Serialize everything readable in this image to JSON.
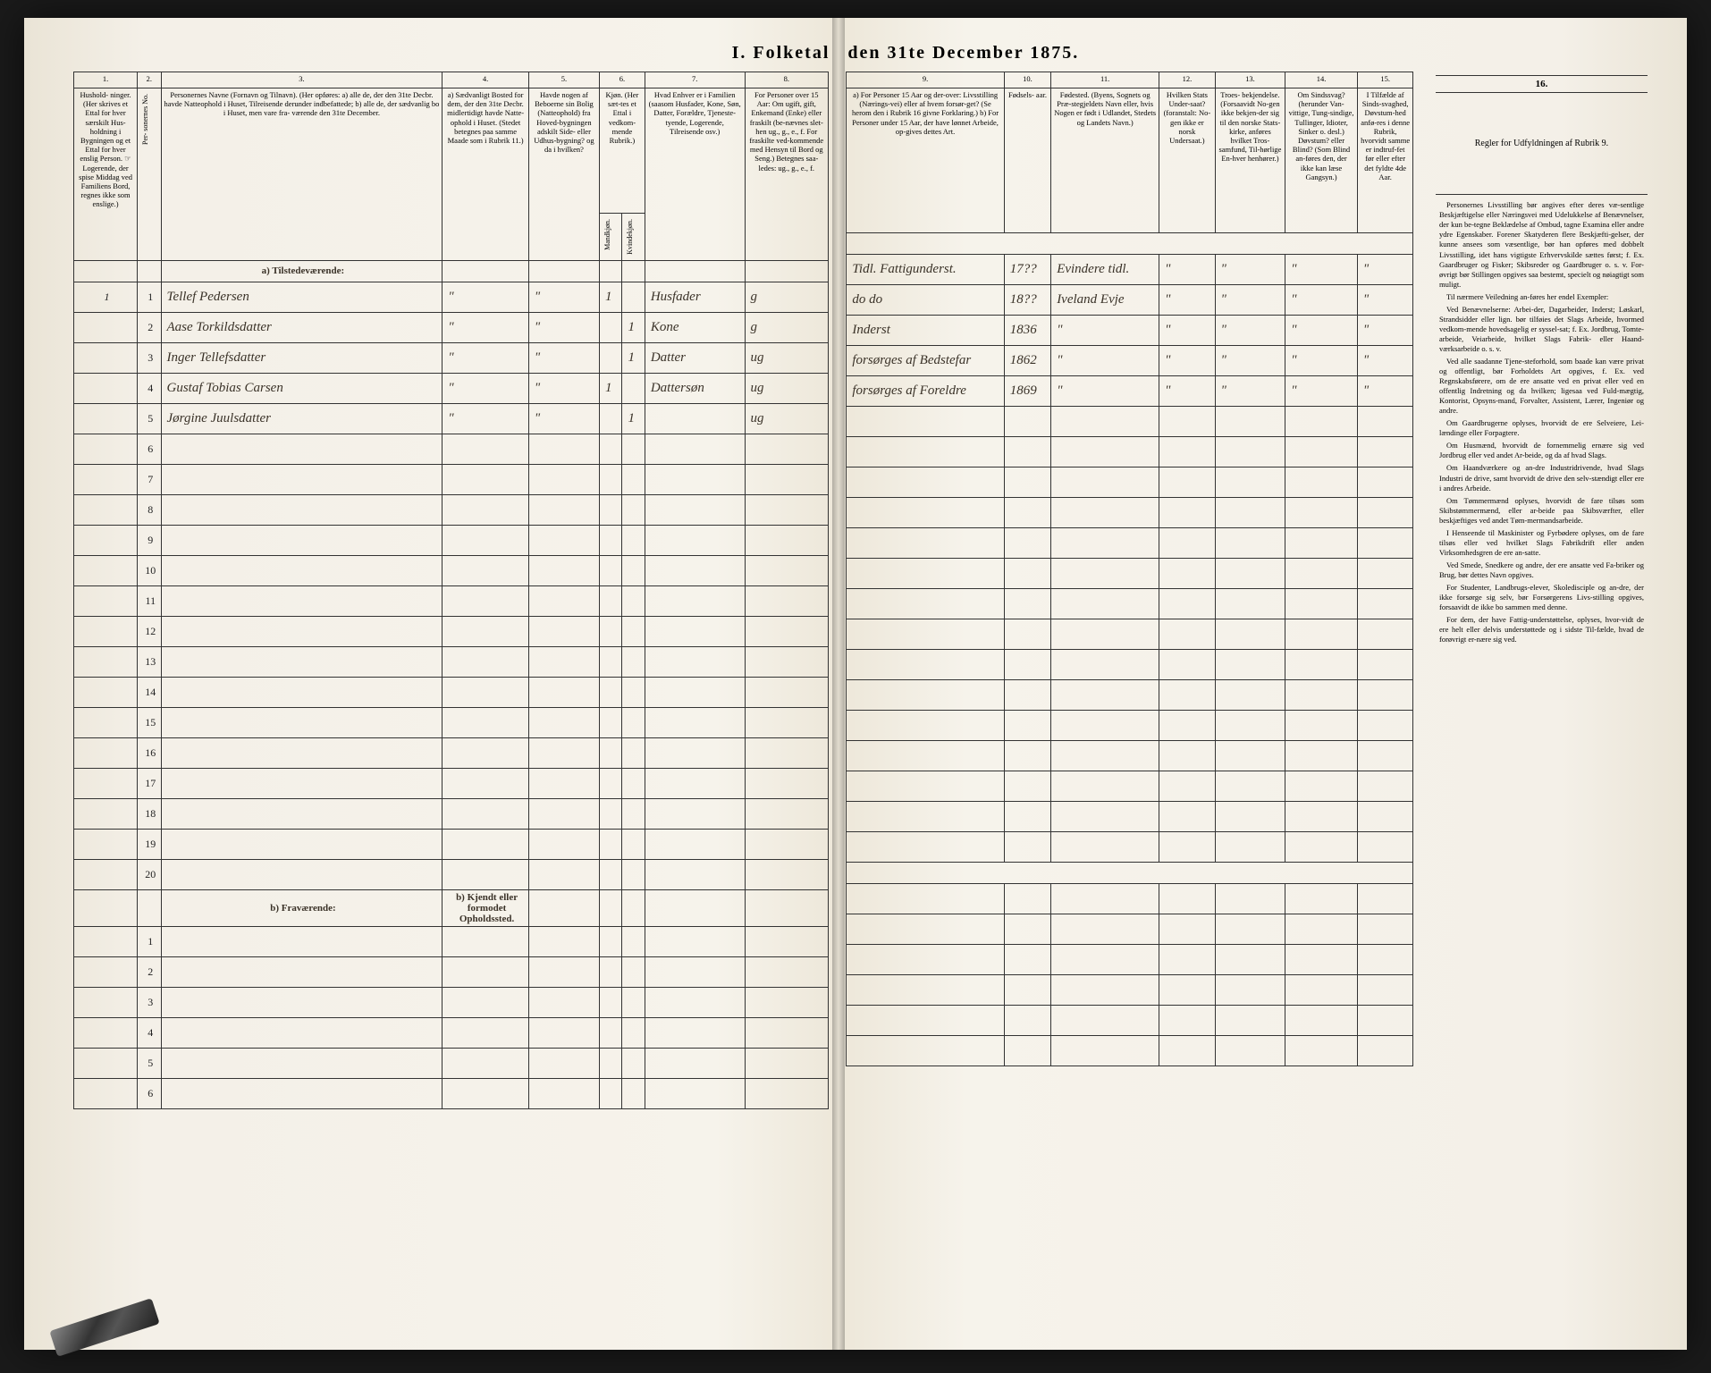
{
  "title_left": "I.  Folketal",
  "title_right": "den 31te December 1875.",
  "columns_left": {
    "1": {
      "num": "1.",
      "head": "Hushold-\nninger.\n(Her skrives et Ettal for hver særskilt Hus-holdning i Bygningen og et Ettal for hver enslig Person.\n☞ Logerende, der spise Middag ved Familiens Bord, regnes ikke som enslige.)"
    },
    "2": {
      "num": "2.",
      "head": "Per-\nsonernes No."
    },
    "3": {
      "num": "3.",
      "head": "Personernes Navne (Fornavn og Tilnavn).\n\n(Her opføres:\na) alle de, der den 31te Decbr. havde Natteophold i Huset, Tilreisende derunder indbefattede;\nb) alle de, der sædvanlig bo i Huset, men vare fra-\nværende den 31te December."
    },
    "4": {
      "num": "4.",
      "head": "a) Sædvanligt Bosted for dem, der den 31te Decbr. midlertidigt havde Natte-ophold i Huset.\n(Stedet betegnes paa samme Maade som i Rubrik 11.)"
    },
    "5": {
      "num": "5.",
      "head": "Havde nogen af Beboerne sin Bolig (Natteophold) fra Hoved-bygningen adskilt Side- eller Udhus-bygning? og da i hvilken?"
    },
    "6": {
      "num": "6.",
      "head": "Kjøn.\n(Her sæt-tes et Ettal i vedkom-mende Rubrik.)",
      "sub_m": "Mandkjøn.",
      "sub_k": "Kvindekjøn."
    },
    "7": {
      "num": "7.",
      "head": "Hvad Enhver er i Familien\n(saasom Husfader, Kone, Søn, Datter, Forældre, Tjeneste-tyende, Logerende, Tilreisende osv.)"
    },
    "8": {
      "num": "8.",
      "head": "For Personer over 15 Aar: Om ugift, gift, Enkemand (Enke) eller fraskilt (be-nævnes slet-hen ug., g., e., f.   For fraskilte ved-kommende med Hensyn til Bord og Seng.)  Betegnes saa-ledes: ug., g., e., f."
    }
  },
  "columns_right": {
    "9": {
      "num": "9.",
      "head": "a) For Personer 15 Aar og der-over: Livsstilling (Nærings-vei) eller af hvem forsør-get? (Se herom den i Rubrik 16 givne Forklaring.)\nb) For Personer under 15 Aar, der have lønnet Arbeide, op-gives dettes Art."
    },
    "10": {
      "num": "10.",
      "head": "Fødsels-\naar."
    },
    "11": {
      "num": "11.",
      "head": "Fødested.\n(Byens, Sognets og Præ-stegjeldets Navn eller, hvis Nogen er født i Udlandet, Stedets og Landets Navn.)"
    },
    "12": {
      "num": "12.",
      "head": "Hvilken Stats Under-saat?\n(foranstalt: No-gen ikke er norsk Undersaat.)"
    },
    "13": {
      "num": "13.",
      "head": "Troes-\nbekjendelse.\n(Forsaavidt No-gen ikke bekjen-der sig til den norske Stats-kirke, anføres hvilket Tros-samfund, Til-hørlige En-hver henhører.)"
    },
    "14": {
      "num": "14.",
      "head": "Om Sindssvag? (herunder Van-vittige, Tung-sindige, Tullinger, Idioter, Sinker o. desl.)\nDøvstum?\neller Blind?\n(Som Blind an-føres den, der ikke kan læse Gangsyn.)"
    },
    "15": {
      "num": "15.",
      "head": "I Tilfælde af Sinds-svaghed, Døvstum-hed anfø-res i denne Rubrik, hvorvidt samme er indtruf-fet før eller efter det fyldte 4de Aar."
    }
  },
  "section_a": "a) Tilstedeværende:",
  "section_b": "b) Fraværende:",
  "section_b_col4": "b) Kjendt eller formodet Opholdssted.",
  "rows": [
    {
      "hh": "1",
      "no": "1",
      "name": "Tellef Pedersen",
      "c4": "\"",
      "c5": "\"",
      "m": "1",
      "k": "",
      "fam": "Husfader",
      "civ": "g",
      "occ": "Tidl. Fattigunderst.",
      "year": "17??",
      "place": "Evindere tidl.",
      "c12": "\"",
      "c13": "\"",
      "c14": "\"",
      "c15": "\""
    },
    {
      "hh": "",
      "no": "2",
      "name": "Aase Torkildsdatter",
      "c4": "\"",
      "c5": "\"",
      "m": "",
      "k": "1",
      "fam": "Kone",
      "civ": "g",
      "occ": "do    do",
      "year": "18??",
      "place": "Iveland Evje",
      "c12": "\"",
      "c13": "\"",
      "c14": "\"",
      "c15": "\""
    },
    {
      "hh": "",
      "no": "3",
      "name": "Inger Tellefsdatter",
      "c4": "\"",
      "c5": "\"",
      "m": "",
      "k": "1",
      "fam": "Datter",
      "civ": "ug",
      "occ": "Inderst",
      "year": "1836",
      "place": "\"",
      "c12": "\"",
      "c13": "\"",
      "c14": "\"",
      "c15": "\""
    },
    {
      "hh": "",
      "no": "4",
      "name": "Gustaf Tobias Carsen",
      "c4": "\"",
      "c5": "\"",
      "m": "1",
      "k": "",
      "fam": "Dattersøn",
      "civ": "ug",
      "occ": "forsørges af Bedstefar",
      "year": "1862",
      "place": "\"",
      "c12": "\"",
      "c13": "\"",
      "c14": "\"",
      "c15": "\""
    },
    {
      "hh": "",
      "no": "5",
      "name": "Jørgine Juulsdatter",
      "c4": "\"",
      "c5": "\"",
      "m": "",
      "k": "1",
      "fam": "",
      "civ": "ug",
      "occ": "forsørges af Foreldre",
      "year": "1869",
      "place": "\"",
      "c12": "\"",
      "c13": "\"",
      "c14": "\"",
      "c15": "\""
    }
  ],
  "empty_rows_a": [
    "6",
    "7",
    "8",
    "9",
    "10",
    "11",
    "12",
    "13",
    "14",
    "15",
    "16",
    "17",
    "18",
    "19",
    "20"
  ],
  "empty_rows_b": [
    "1",
    "2",
    "3",
    "4",
    "5",
    "6"
  ],
  "rules": {
    "colnum": "16.",
    "head": "Regler for Udfyldningen\naf\nRubrik 9.",
    "paras": [
      "Personernes Livsstilling bør angives efter deres væ-sentlige Beskjæftigelse eller Næringsvei med Udelukkelse af Benævnelser, der kun be-tegne Beklædelse af Ombud, tagne Examina eller andre ydre Egenskaber. Forener Skatyderen flere Beskjæfti-gelser, der kunne ansees som væsentlige, bør han opføres med dobbelt Livsstilling, idet hans vigtigste Erhvervskilde sættes først; f. Ex. Gaardbruger og Fisker; Skibsreder og Gaardbruger o. s. v. For-øvrigt bør Stillingen opgives saa bestemt, specielt og nøiagtigt som muligt.",
      "Til nærmere Veiledning an-føres her endel Exempler:",
      "Ved Benævnelserne: Arbei-der, Dagarbeider, Inderst; Løskarl, Strandsidder eller lign. bør tilføies det Slags Arbeide, hvormed vedkom-mende hovedsagelig er syssel-sat; f. Ex. Jordbrug, Tomte-arbeide, Veiarbeide, hvilket Slags Fabrik- eller Haand-værksarbeide o. s. v.",
      "Ved alle saadanne Tjene-steforhold, som baade kan være privat og offentligt, bør Forholdets Art opgives, f. Ex. ved Regnskabsførere, om de ere ansatte ved en privat eller ved en offentlig Indretning og da hvilken; ligesaa ved Fuld-mægtig, Kontorist, Opsyns-mand, Forvalter, Assistent, Lærer, Ingeniør og andre.",
      "Om Gaardbrugerne oplyses, hvorvidt de ere Selveiere, Lei-lændinge eller Forpagtere.",
      "Om Husmænd, hvorvidt de fornemmelig ernære sig ved Jordbrug eller ved andet Ar-beide, og da af hvad Slags.",
      "Om Haandværkere og an-dre Industridrivende, hvad Slags Industri de drive, samt hvorvidt de drive den selv-stændigt eller ere i andres Arbeide.",
      "Om Tømmermænd oplyses, hvorvidt de fare tilsøs som Skibstømmermænd, eller ar-beide paa Skibsværfter, eller beskjæftiges ved andet Tøm-mermandsarbeide.",
      "I Henseende til Maskinister og Fyrbødere oplyses, om de fare tilsøs eller ved hvilket Slags Fabrikdrift eller anden Virksomhedsgren de ere an-satte.",
      "Ved Smede, Snedkere og andre, der ere ansatte ved Fa-briker og Brug, bør dettes Navn opgives.",
      "For Studenter, Landbrugs-elever, Skoledisciple og an-dre, der ikke forsørge sig selv, bør Forsørgerens Livs-stilling opgives, forsaavidt de ikke bo sammen med denne.",
      "For dem, der have Fattig-understøttelse, oplyses, hvor-vidt de ere helt eller delvis understøttede og i sidste Til-fælde, hvad de forøvrigt er-nære sig ved."
    ]
  },
  "colors": {
    "paper": "#f4f0e8",
    "ink": "#2a2620",
    "rule": "#333333",
    "script": "#3a3228",
    "background": "#1a1a1a"
  }
}
